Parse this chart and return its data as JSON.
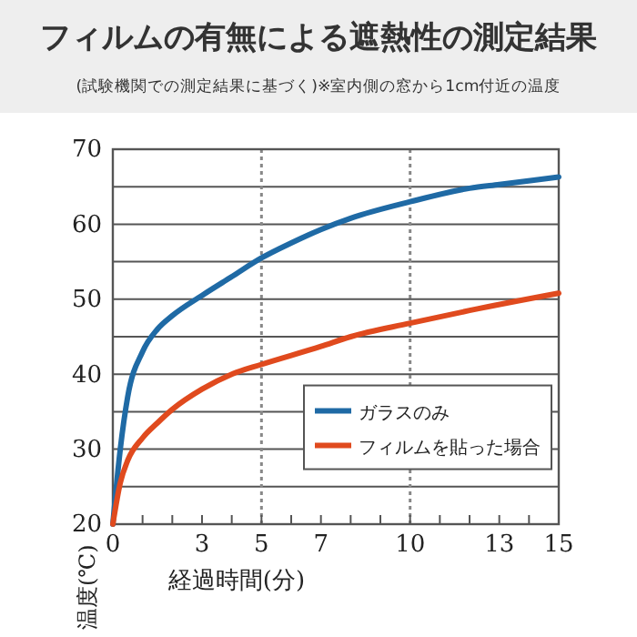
{
  "chart_data": {
    "type": "line",
    "title": "フィルムの有無による遮熱性の測定結果",
    "subtitle": "(試験機関での測定結果に基づく)※室内側の窓から1cm付近の温度",
    "xlabel": "経過時間(分)",
    "ylabel": "温度(℃)",
    "xlim": [
      0,
      15
    ],
    "ylim": [
      20,
      70
    ],
    "xticks": [
      0,
      {
        "value": 1,
        "label": null
      },
      {
        "value": 2,
        "label": null
      },
      3,
      {
        "value": 4,
        "label": null
      },
      5,
      {
        "value": 6,
        "label": null
      },
      7,
      {
        "value": 8,
        "label": null
      },
      {
        "value": 9,
        "label": null
      },
      10,
      {
        "value": 11,
        "label": null
      },
      {
        "value": 12,
        "label": null
      },
      13,
      {
        "value": 14,
        "label": null
      },
      15
    ],
    "yticks": [
      20,
      {
        "value": 25,
        "label": null
      },
      30,
      {
        "value": 35,
        "label": null
      },
      40,
      {
        "value": 45,
        "label": null
      },
      50,
      {
        "value": 55,
        "label": null
      },
      60,
      {
        "value": 65,
        "label": null
      },
      70
    ],
    "grid": "y",
    "legend": "bottom right",
    "marker": "none",
    "line_style": "solid",
    "ref_lines": [
      {
        "axis": "x",
        "value": 5,
        "line_style": "dotted",
        "color": "#888888"
      },
      {
        "axis": "x",
        "value": 10,
        "line_style": "dotted",
        "color": "#888888"
      }
    ],
    "series": [
      {
        "name": "ガラスのみ",
        "color": "#1f6aa5",
        "x": [
          0,
          0.25,
          0.5,
          1,
          1.5,
          2,
          3,
          4,
          5,
          6,
          7,
          8,
          10,
          12,
          13,
          15
        ],
        "values": [
          20,
          30,
          37,
          43,
          46,
          47.8,
          50.5,
          53,
          55.5,
          57.5,
          59.3,
          60.8,
          63,
          64.8,
          65.3,
          66.3
        ]
      },
      {
        "name": "フィルムを貼った場合",
        "color": "#e04a1e",
        "x": [
          0,
          0.25,
          0.5,
          1,
          1.5,
          2,
          3,
          4,
          5,
          7,
          8,
          10,
          12,
          15
        ],
        "values": [
          20,
          25.5,
          28.5,
          31.5,
          33.5,
          35.3,
          38,
          40,
          41.3,
          43.7,
          45,
          46.8,
          48.5,
          50.8
        ]
      }
    ]
  }
}
